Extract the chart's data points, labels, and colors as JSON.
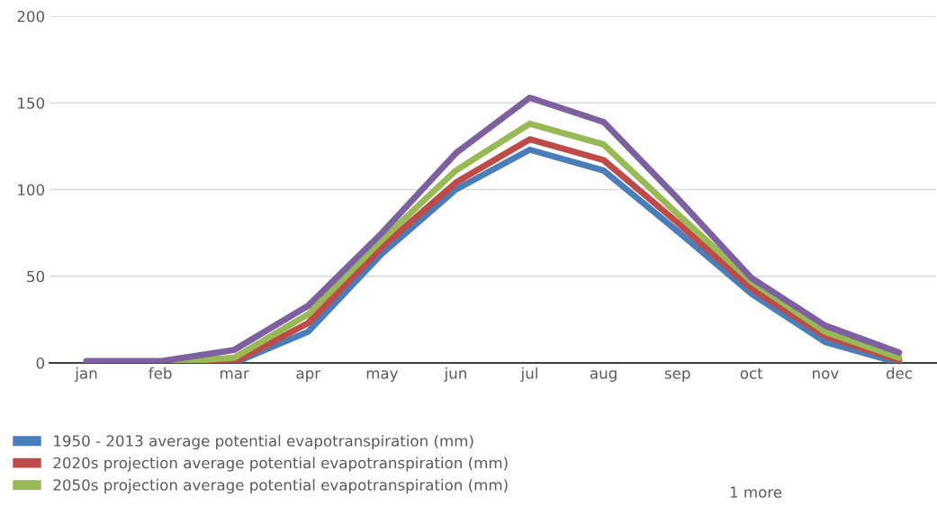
{
  "chart_data": {
    "type": "line",
    "categories": [
      "jan",
      "feb",
      "mar",
      "apr",
      "may",
      "jun",
      "jul",
      "aug",
      "sep",
      "oct",
      "nov",
      "dec"
    ],
    "ylim": [
      0,
      200
    ],
    "yticks": [
      0,
      50,
      100,
      150,
      200
    ],
    "grid": "y",
    "legend": "bottom",
    "marker": "none",
    "line_style": "solid",
    "series": [
      {
        "name": "1950 - 2013 average potential evapotranspiration (mm)",
        "color": "#4a7ebb",
        "values": [
          0,
          0,
          0,
          18,
          63,
          100,
          123,
          111,
          76,
          40,
          12,
          0
        ]
      },
      {
        "name": "2020s projection average potential evapotranspiration (mm)",
        "color": "#be4b48",
        "values": [
          0,
          0,
          0.5,
          23,
          67,
          104,
          129,
          117,
          81,
          43,
          15.5,
          1.5
        ]
      },
      {
        "name": "2050s projection average potential evapotranspiration (mm)",
        "color": "#98b954",
        "values": [
          0,
          0,
          3,
          28,
          71,
          111,
          138,
          126,
          86,
          47,
          18,
          3
        ]
      },
      {
        "color": "#7d60a0",
        "values": [
          1,
          1,
          7.5,
          33,
          75,
          121,
          153,
          139,
          95,
          49,
          21.5,
          6
        ]
      }
    ],
    "annotations": [
      "1 more"
    ]
  }
}
